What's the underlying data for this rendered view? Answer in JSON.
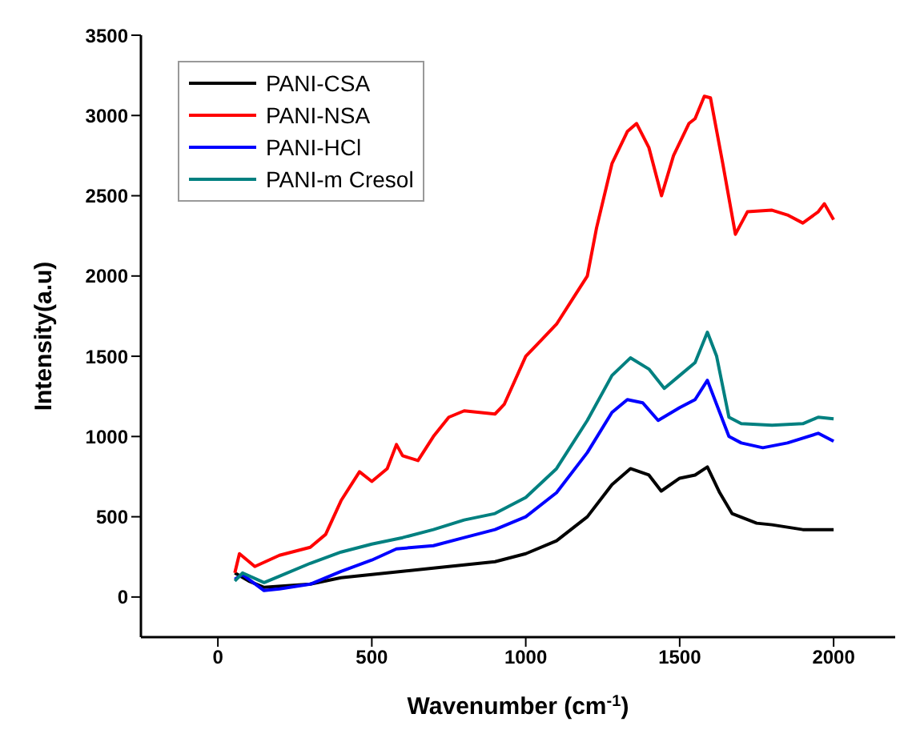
{
  "chart_data": {
    "type": "line",
    "xlabel": "Wavenumber (cm$^{-1}$)",
    "ylabel": "Intensity(a.u)",
    "xlim": [
      -250,
      2200
    ],
    "xticks": [
      0,
      500,
      1000,
      1500,
      2000
    ],
    "ylim": [
      -250,
      3500
    ],
    "yticks": [
      0,
      500,
      1000,
      1500,
      2000,
      2500,
      3000,
      3500
    ],
    "grid": false,
    "legend": "top left",
    "marker": "none",
    "line_style": "solid",
    "series": [
      {
        "name": "PANI-CSA",
        "color": "#000000",
        "x": [
          55,
          100,
          150,
          300,
          400,
          500,
          600,
          700,
          800,
          900,
          1000,
          1100,
          1200,
          1280,
          1340,
          1400,
          1440,
          1500,
          1550,
          1590,
          1630,
          1670,
          1750,
          1800,
          1900,
          2000
        ],
        "values": [
          150,
          100,
          60,
          80,
          120,
          140,
          160,
          180,
          200,
          220,
          270,
          350,
          500,
          700,
          800,
          760,
          660,
          740,
          760,
          810,
          650,
          520,
          460,
          450,
          420,
          420
        ]
      },
      {
        "name": "PANI-NSA",
        "color": "#ff0000",
        "x": [
          55,
          70,
          120,
          200,
          300,
          350,
          400,
          460,
          500,
          550,
          580,
          600,
          650,
          700,
          750,
          800,
          900,
          930,
          1000,
          1050,
          1100,
          1150,
          1200,
          1230,
          1280,
          1330,
          1360,
          1400,
          1441,
          1480,
          1530,
          1550,
          1580,
          1600,
          1640,
          1681,
          1720,
          1800,
          1850,
          1900,
          1950,
          1970,
          2000
        ],
        "values": [
          150,
          270,
          190,
          260,
          310,
          390,
          600,
          780,
          720,
          800,
          950,
          880,
          850,
          1000,
          1120,
          1160,
          1140,
          1200,
          1500,
          1600,
          1700,
          1850,
          2000,
          2300,
          2700,
          2900,
          2950,
          2800,
          2500,
          2750,
          2950,
          2980,
          3120,
          3110,
          2700,
          2260,
          2400,
          2410,
          2380,
          2330,
          2400,
          2450,
          2350
        ]
      },
      {
        "name": "PANI-HCl",
        "color": "#0000ff",
        "x": [
          55,
          80,
          150,
          200,
          300,
          400,
          500,
          580,
          700,
          800,
          900,
          1000,
          1100,
          1200,
          1280,
          1330,
          1380,
          1430,
          1500,
          1550,
          1590,
          1630,
          1660,
          1700,
          1770,
          1850,
          1950,
          2000
        ],
        "values": [
          110,
          140,
          40,
          50,
          80,
          160,
          230,
          300,
          320,
          370,
          420,
          500,
          650,
          900,
          1150,
          1230,
          1210,
          1100,
          1180,
          1230,
          1350,
          1150,
          1000,
          960,
          930,
          960,
          1020,
          970
        ]
      },
      {
        "name": "PANI-m Cresol",
        "color": "#008080",
        "x": [
          55,
          80,
          150,
          200,
          300,
          400,
          500,
          600,
          700,
          800,
          900,
          1000,
          1100,
          1200,
          1280,
          1340,
          1400,
          1450,
          1500,
          1550,
          1590,
          1620,
          1660,
          1700,
          1800,
          1900,
          1950,
          2000
        ],
        "values": [
          100,
          150,
          90,
          130,
          210,
          280,
          330,
          370,
          420,
          480,
          520,
          620,
          800,
          1100,
          1380,
          1490,
          1420,
          1300,
          1380,
          1460,
          1650,
          1500,
          1120,
          1080,
          1070,
          1080,
          1120,
          1110
        ]
      }
    ]
  }
}
